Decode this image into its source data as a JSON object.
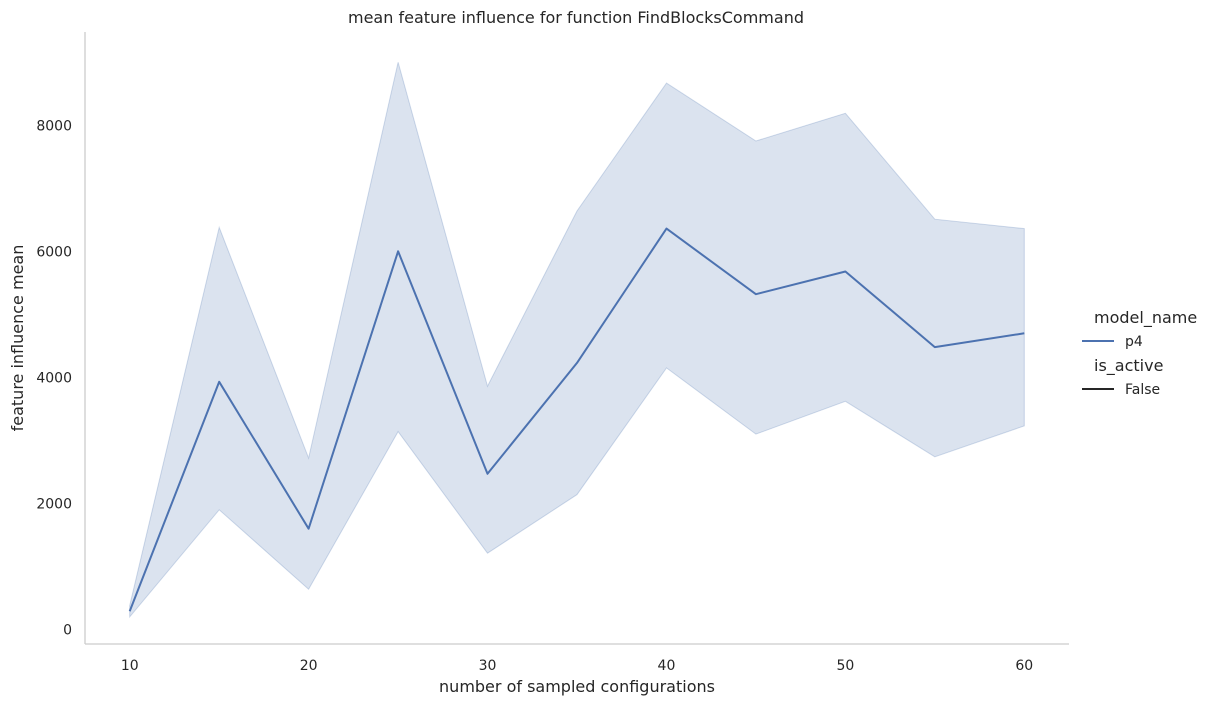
{
  "chart_data": {
    "type": "line",
    "title": "mean feature influence for function FindBlocksCommand",
    "xlabel": "number of sampled configurations",
    "ylabel": "feature influence mean",
    "xlim": [
      7.5,
      62.5
    ],
    "ylim": [
      -230,
      9480
    ],
    "x_ticks": [
      10,
      20,
      30,
      40,
      50,
      60
    ],
    "y_ticks": [
      0,
      2000,
      4000,
      6000,
      8000
    ],
    "grid": false,
    "legend_placement": "right",
    "legend": {
      "groups": [
        {
          "title": "model_name",
          "entries": [
            {
              "label": "p4",
              "color": "#4c72b0"
            }
          ]
        },
        {
          "title": "is_active",
          "entries": [
            {
              "label": "False",
              "color": "#262626"
            }
          ]
        }
      ]
    },
    "x": [
      10,
      15,
      20,
      25,
      30,
      35,
      40,
      45,
      50,
      55,
      60
    ],
    "series": [
      {
        "name": "p4",
        "color": "#4c72b0",
        "values": [
          290,
          3930,
          1600,
          6000,
          2470,
          4230,
          6360,
          5320,
          5680,
          4480,
          4700
        ],
        "ci_lower": [
          200,
          1900,
          640,
          3140,
          1210,
          2140,
          4150,
          3100,
          3620,
          2740,
          3230
        ],
        "ci_upper": [
          380,
          6380,
          2720,
          9000,
          3860,
          6640,
          8670,
          7750,
          8190,
          6510,
          6360
        ]
      }
    ]
  }
}
